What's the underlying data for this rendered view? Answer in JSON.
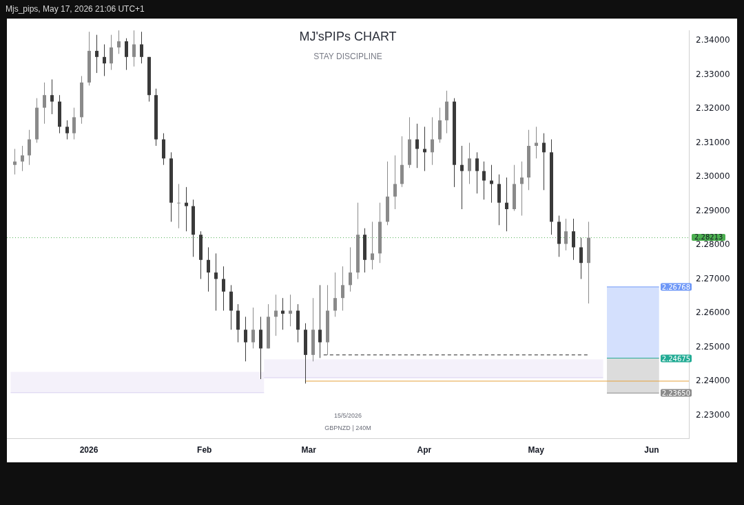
{
  "chart_data": {
    "type": "candlestick",
    "title": "MJ'sPIPs CHART",
    "subtitle": "STAY DISCIPLINE",
    "annotations": [
      "Mjs_pips, May 17, 2026 21:06 UTC+1",
      "15/5/2026",
      "GBPNZD | 240M"
    ],
    "colors": [
      "#8a8a8a",
      "#8a8a8a",
      "#8a8a8a",
      "#8a8a8a",
      "#8a8a8a",
      "#3a3a3a",
      "#3a3a3a",
      "#3a3a3a",
      "#8a8a8a",
      "#8a8a8a",
      "#8a8a8a",
      "#3a3a3a",
      "#3a3a3a",
      "#8a8a8a",
      "#8a8a8a",
      "#3a3a3a",
      "#8a8a8a",
      "#3a3a3a",
      "#3a3a3a",
      "#3a3a3a",
      "#3a3a3a",
      "#3a3a3a",
      "#8a8a8a",
      "#3a3a3a",
      "#3a3a3a",
      "#3a3a3a",
      "#3a3a3a",
      "#3a3a3a",
      "#3a3a3a",
      "#3a3a3a",
      "#3a3a3a",
      "#3a3a3a",
      "#8a8a8a",
      "#3a3a3a",
      "#8a8a8a",
      "#8a8a8a",
      "#3a3a3a",
      "#8a8a8a",
      "#3a3a3a",
      "#3a3a3a",
      "#8a8a8a",
      "#3a3a3a",
      "#8a8a8a",
      "#8a8a8a",
      "#8a8a8a",
      "#8a8a8a",
      "#8a8a8a",
      "#3a3a3a",
      "#8a8a8a",
      "#8a8a8a",
      "#8a8a8a",
      "#8a8a8a",
      "#8a8a8a",
      "#8a8a8a",
      "#3a3a3a",
      "#3a3a3a",
      "#8a8a8a",
      "#8a8a8a",
      "#8a8a8a",
      "#3a3a3a",
      "#3a3a3a",
      "#8a8a8a",
      "#3a3a3a",
      "#3a3a3a",
      "#3a3a3a",
      "#3a3a3a",
      "#3a3a3a",
      "#8a8a8a",
      "#8a8a8a",
      "#8a8a8a",
      "#8a8a8a",
      "#3a3a3a",
      "#3a3a3a",
      "#3a3a3a",
      "#8a8a8a",
      "#3a3a3a",
      "#3a3a3a",
      "#8a8a8a"
    ],
    "x": [
      "2025-12-12",
      "2025-12-14",
      "2025-12-16",
      "2025-12-18",
      "2025-12-20",
      "2025-12-22",
      "2025-12-24",
      "2025-12-26",
      "2025-12-28",
      "2025-12-30",
      "2026-01-01",
      "2026-01-03",
      "2026-01-05",
      "2026-01-07",
      "2026-01-09",
      "2026-01-11",
      "2026-01-13",
      "2026-01-15",
      "2026-01-17",
      "2026-01-19",
      "2026-01-21",
      "2026-01-23",
      "2026-01-25",
      "2026-01-27",
      "2026-01-29",
      "2026-01-31",
      "2026-02-02",
      "2026-02-04",
      "2026-02-06",
      "2026-02-08",
      "2026-02-10",
      "2026-02-12",
      "2026-02-14",
      "2026-02-16",
      "2026-02-18",
      "2026-02-20",
      "2026-02-22",
      "2026-02-24",
      "2026-02-26",
      "2026-02-28",
      "2026-03-02",
      "2026-03-04",
      "2026-03-06",
      "2026-03-08",
      "2026-03-10",
      "2026-03-12",
      "2026-03-14",
      "2026-03-16",
      "2026-03-18",
      "2026-03-20",
      "2026-03-22",
      "2026-03-24",
      "2026-03-26",
      "2026-03-28",
      "2026-03-30",
      "2026-04-01",
      "2026-04-03",
      "2026-04-05",
      "2026-04-07",
      "2026-04-09",
      "2026-04-11",
      "2026-04-13",
      "2026-04-15",
      "2026-04-17",
      "2026-04-19",
      "2026-04-21",
      "2026-04-23",
      "2026-04-25",
      "2026-04-27",
      "2026-04-29",
      "2026-05-01",
      "2026-05-03",
      "2026-05-05",
      "2026-05-07",
      "2026-05-09",
      "2026-05-11",
      "2026-05-13",
      "2026-05-15"
    ],
    "ohlc": [
      [
        2.3035,
        2.3082,
        2.3007,
        2.3045
      ],
      [
        2.3045,
        2.3091,
        2.3017,
        2.3063
      ],
      [
        2.3063,
        2.3138,
        2.3035,
        2.311
      ],
      [
        2.311,
        2.3231,
        2.31,
        2.3203
      ],
      [
        2.3203,
        2.3277,
        2.3156,
        2.324
      ],
      [
        2.324,
        2.3286,
        2.3184,
        2.3221
      ],
      [
        2.3221,
        2.324,
        2.3128,
        2.3147
      ],
      [
        2.3147,
        2.3166,
        2.311,
        2.3128
      ],
      [
        2.3128,
        2.3203,
        2.311,
        2.3175
      ],
      [
        2.3175,
        2.3296,
        2.3156,
        2.3277
      ],
      [
        2.3277,
        2.3426,
        2.3268,
        2.337
      ],
      [
        2.337,
        2.3417,
        2.3305,
        2.3352
      ],
      [
        2.3352,
        2.3389,
        2.3296,
        2.3333
      ],
      [
        2.3333,
        2.3417,
        2.3314,
        2.338
      ],
      [
        2.338,
        2.343,
        2.3361,
        2.3398
      ],
      [
        2.3398,
        2.3407,
        2.3314,
        2.3352
      ],
      [
        2.3352,
        2.343,
        2.3324,
        2.3389
      ],
      [
        2.3389,
        2.3426,
        2.3333,
        2.3352
      ],
      [
        2.3352,
        2.3352,
        2.3221,
        2.324
      ],
      [
        2.324,
        2.3259,
        2.3091,
        2.311
      ],
      [
        2.311,
        2.3128,
        2.3035,
        2.3054
      ],
      [
        2.3054,
        2.3072,
        2.2868,
        2.2924
      ],
      [
        2.2924,
        2.2979,
        2.2849,
        2.2924
      ],
      [
        2.2924,
        2.297,
        2.284,
        2.2914
      ],
      [
        2.2914,
        2.2933,
        2.2765,
        2.283
      ],
      [
        2.283,
        2.284,
        2.27,
        2.2756
      ],
      [
        2.2756,
        2.2793,
        2.2663,
        2.2719
      ],
      [
        2.2719,
        2.2775,
        2.2607,
        2.27
      ],
      [
        2.27,
        2.2737,
        2.2607,
        2.2663
      ],
      [
        2.2663,
        2.2682,
        2.2551,
        2.2607
      ],
      [
        2.2607,
        2.2626,
        2.2514,
        2.2551
      ],
      [
        2.2551,
        2.2589,
        2.2458,
        2.2514
      ],
      [
        2.2514,
        2.2616,
        2.2496,
        2.2551
      ],
      [
        2.2551,
        2.2589,
        2.2406,
        2.2496
      ],
      [
        2.2496,
        2.2626,
        2.2496,
        2.2589
      ],
      [
        2.2589,
        2.2654,
        2.2533,
        2.2607
      ],
      [
        2.2607,
        2.2644,
        2.2551,
        2.2598
      ],
      [
        2.2598,
        2.2654,
        2.2561,
        2.2607
      ],
      [
        2.2607,
        2.2626,
        2.2514,
        2.2551
      ],
      [
        2.2551,
        2.257,
        2.2393,
        2.2477
      ],
      [
        2.2477,
        2.2644,
        2.2458,
        2.2551
      ],
      [
        2.2551,
        2.2682,
        2.2468,
        2.2514
      ],
      [
        2.2514,
        2.2682,
        2.2477,
        2.2607
      ],
      [
        2.2607,
        2.2719,
        2.2589,
        2.2644
      ],
      [
        2.2644,
        2.2737,
        2.2607,
        2.2682
      ],
      [
        2.2682,
        2.2793,
        2.2663,
        2.2719
      ],
      [
        2.2719,
        2.2924,
        2.27,
        2.283
      ],
      [
        2.283,
        2.2849,
        2.2719,
        2.2756
      ],
      [
        2.2756,
        2.2868,
        2.2728,
        2.2775
      ],
      [
        2.2775,
        2.2924,
        2.2747,
        2.2868
      ],
      [
        2.2868,
        2.3045,
        2.2858,
        2.2942
      ],
      [
        2.2942,
        2.3063,
        2.2905,
        2.2979
      ],
      [
        2.2979,
        2.3119,
        2.297,
        2.3035
      ],
      [
        2.3035,
        2.3175,
        2.3026,
        2.311
      ],
      [
        2.311,
        2.3156,
        2.3026,
        2.3082
      ],
      [
        2.3082,
        2.3147,
        2.3017,
        2.3072
      ],
      [
        2.3072,
        2.3175,
        2.3035,
        2.311
      ],
      [
        2.311,
        2.3203,
        2.31,
        2.3166
      ],
      [
        2.3166,
        2.3253,
        2.3128,
        2.3221
      ],
      [
        2.3221,
        2.3231,
        2.297,
        2.3035
      ],
      [
        2.3035,
        2.3091,
        2.2905,
        2.3017
      ],
      [
        2.3017,
        2.31,
        2.2979,
        2.3054
      ],
      [
        2.3054,
        2.3072,
        2.2951,
        2.3017
      ],
      [
        2.3017,
        2.3045,
        2.2933,
        2.2989
      ],
      [
        2.2989,
        2.3035,
        2.2924,
        2.2979
      ],
      [
        2.2979,
        2.3007,
        2.2858,
        2.2924
      ],
      [
        2.2924,
        2.2998,
        2.284,
        2.2905
      ],
      [
        2.2905,
        2.3035,
        2.29,
        2.2979
      ],
      [
        2.2979,
        2.3045,
        2.2886,
        2.2998
      ],
      [
        2.2998,
        2.3138,
        2.2961,
        2.3091
      ],
      [
        2.3091,
        2.3147,
        2.3054,
        2.31
      ],
      [
        2.31,
        2.3128,
        2.2961,
        2.3072
      ],
      [
        2.3072,
        2.311,
        2.283,
        2.2868
      ],
      [
        2.2868,
        2.2886,
        2.2765,
        2.2803
      ],
      [
        2.2803,
        2.2877,
        2.2784,
        2.284
      ],
      [
        2.284,
        2.2877,
        2.2756,
        2.2793
      ],
      [
        2.2793,
        2.2821,
        2.27,
        2.2747
      ],
      [
        2.2747,
        2.2868,
        2.2628,
        2.28213
      ]
    ],
    "series": [
      {
        "type": "line",
        "color": "#d9d0f0",
        "x": [
          "2025-12-11",
          "2026-02-17"
        ],
        "values": [
          2.2366,
          2.2366
        ],
        "lower": [
          2.2366,
          2.2366
        ],
        "upper": [
          2.2427,
          2.2427
        ]
      },
      {
        "type": "line",
        "color": "#d9d0f0",
        "x": [
          "2026-02-17",
          "2026-05-19"
        ],
        "values": [
          2.241,
          2.241
        ],
        "lower": [
          2.241,
          2.241
        ],
        "upper": [
          2.2464,
          2.2464
        ]
      },
      {
        "type": "line",
        "color": "#6f98f7",
        "x": [
          "2026-05-20",
          "2026-06-03"
        ],
        "values": [
          2.26768,
          2.26768
        ],
        "lower": [
          2.24675,
          2.24675
        ],
        "upper": [
          2.26768,
          2.26768
        ],
        "value_labels": [
          null,
          "2.26768"
        ]
      },
      {
        "type": "line",
        "color": "#8a8a8a",
        "x": [
          "2026-05-20",
          "2026-06-03"
        ],
        "values": [
          2.2365,
          2.2365
        ],
        "lower": [
          2.2365,
          2.2365
        ],
        "upper": [
          2.24675,
          2.24675
        ],
        "value_labels": [
          null,
          "2.23650"
        ]
      },
      {
        "type": "line",
        "color": "#22ab94",
        "x": [
          "2026-05-20",
          "2026-06-03"
        ],
        "values": [
          2.24675,
          2.24675
        ],
        "value_labels": [
          null,
          "2.24675"
        ]
      },
      {
        "type": "line",
        "color": "#e5a03a",
        "x": [
          "2026-02-28",
          "2026-06-11"
        ],
        "values": [
          2.24,
          2.24
        ]
      },
      {
        "type": "line",
        "color": "#222222",
        "line_style": "dashed",
        "x": [
          "2026-03-05",
          "2026-05-15"
        ],
        "values": [
          2.2477,
          2.2477
        ]
      }
    ],
    "ref_lines": [
      {
        "axis": "y",
        "value": 2.28213,
        "label": "2.28213",
        "color": "#4caf50",
        "line_style": "dotted"
      }
    ],
    "xlim": [
      "2025-12-10",
      "2026-06-11"
    ],
    "xticks": [
      {
        "value": "2026-01-01",
        "label": "2026"
      },
      {
        "value": "2026-02-01",
        "label": "Feb"
      },
      {
        "value": "2026-03-01",
        "label": "Mar"
      },
      {
        "value": "2026-04-01",
        "label": "Apr"
      },
      {
        "value": "2026-05-01",
        "label": "May"
      },
      {
        "value": "2026-06-01",
        "label": "Jun"
      }
    ],
    "ylim": [
      2.2231,
      2.343
    ],
    "yticks": [
      {
        "value": 2.23,
        "label": "2.23000"
      },
      {
        "value": 2.24,
        "label": "2.24000"
      },
      {
        "value": 2.25,
        "label": "2.25000"
      },
      {
        "value": 2.26,
        "label": "2.26000"
      },
      {
        "value": 2.27,
        "label": "2.27000"
      },
      {
        "value": 2.28,
        "label": "2.28000"
      },
      {
        "value": 2.29,
        "label": "2.29000"
      },
      {
        "value": 2.3,
        "label": "2.30000"
      },
      {
        "value": 2.31,
        "label": "2.31000"
      },
      {
        "value": 2.32,
        "label": "2.32000"
      },
      {
        "value": 2.33,
        "label": "2.33000"
      },
      {
        "value": 2.34,
        "label": "2.34000"
      }
    ],
    "legend": false,
    "grid": false
  }
}
